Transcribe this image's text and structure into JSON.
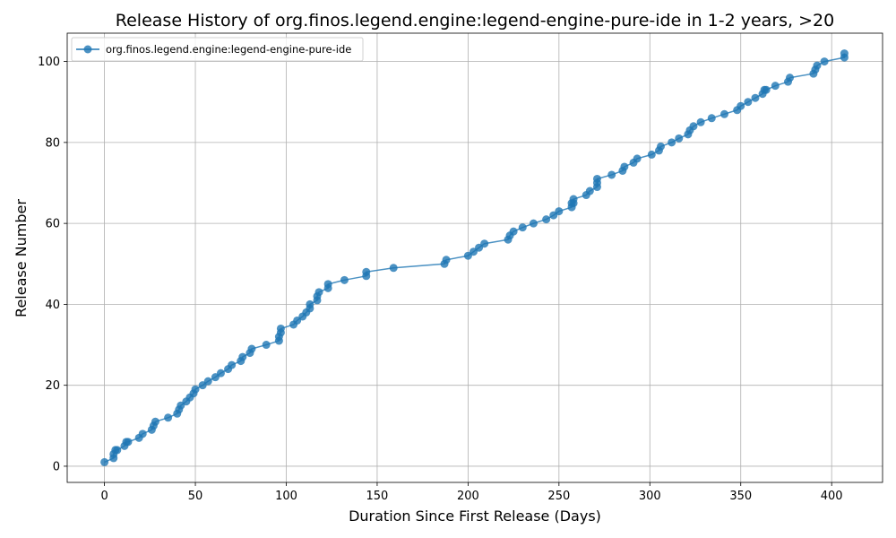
{
  "chart_data": {
    "type": "line",
    "title": "Release History of org.finos.legend.engine:legend-engine-pure-ide in 1-2 years, >20",
    "xlabel": "Duration Since First Release (Days)",
    "ylabel": "Release Number",
    "xlim": [
      -20.5,
      428
    ],
    "ylim": [
      -4,
      107
    ],
    "xticks": [
      0,
      50,
      100,
      150,
      200,
      250,
      300,
      350,
      400
    ],
    "yticks": [
      0,
      20,
      40,
      60,
      80,
      100
    ],
    "grid": true,
    "legend_position": "top-left",
    "series": [
      {
        "name": "org.finos.legend.engine:legend-engine-pure-ide",
        "color": "#1f77b4",
        "marker": "circle",
        "x": [
          0,
          5,
          5,
          6,
          7,
          11,
          12,
          13,
          19,
          21,
          26,
          27,
          28,
          35,
          40,
          41,
          42,
          45,
          47,
          49,
          50,
          54,
          57,
          61,
          64,
          68,
          70,
          75,
          76,
          80,
          81,
          89,
          96,
          96,
          97,
          97,
          104,
          106,
          109,
          111,
          113,
          113,
          117,
          117,
          118,
          123,
          123,
          132,
          144,
          144,
          159,
          187,
          188,
          200,
          203,
          206,
          209,
          222,
          223,
          225,
          230,
          236,
          243,
          247,
          250,
          257,
          257,
          258,
          258,
          265,
          267,
          271,
          271,
          271,
          279,
          285,
          286,
          291,
          293,
          301,
          305,
          306,
          312,
          316,
          321,
          322,
          324,
          328,
          334,
          341,
          348,
          350,
          354,
          358,
          362,
          363,
          364,
          369,
          376,
          377,
          390,
          391,
          392,
          396,
          407,
          407
        ],
        "y": [
          1,
          2,
          3,
          4,
          4,
          5,
          6,
          6,
          7,
          8,
          9,
          10,
          11,
          12,
          13,
          14,
          15,
          16,
          17,
          18,
          19,
          20,
          21,
          22,
          23,
          24,
          25,
          26,
          27,
          28,
          29,
          30,
          31,
          32,
          33,
          34,
          35,
          36,
          37,
          38,
          39,
          40,
          41,
          42,
          43,
          44,
          45,
          46,
          47,
          48,
          49,
          50,
          51,
          52,
          53,
          54,
          55,
          56,
          57,
          58,
          59,
          60,
          61,
          62,
          63,
          64,
          65,
          65,
          66,
          67,
          68,
          69,
          70,
          71,
          72,
          73,
          74,
          75,
          76,
          77,
          78,
          79,
          80,
          81,
          82,
          83,
          84,
          85,
          86,
          87,
          88,
          89,
          90,
          91,
          92,
          93,
          93,
          94,
          95,
          96,
          97,
          98,
          99,
          100,
          101,
          102
        ]
      }
    ]
  }
}
